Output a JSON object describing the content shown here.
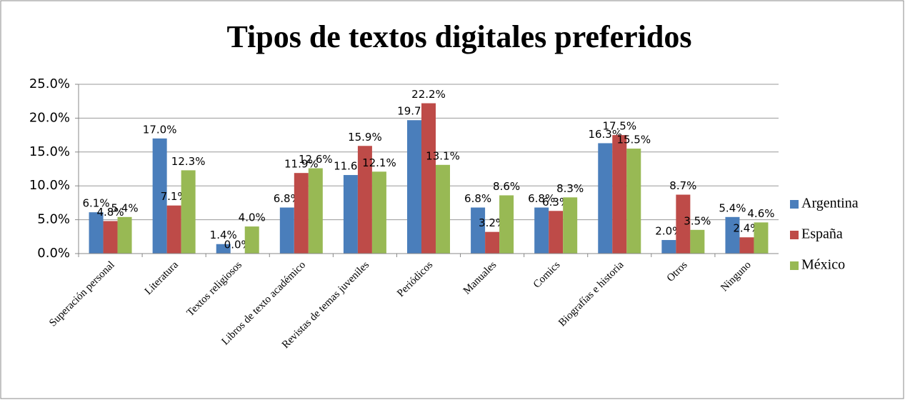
{
  "chart_data": {
    "type": "bar",
    "title": "Tipos de textos digitales preferidos",
    "categories": [
      "Superación personal",
      "Literatura",
      "Textos religiosos",
      "Libros de texto académico",
      "Revistas de temas juveniles",
      "Periódicos",
      "Manuales",
      "Comics",
      "Biografías e historia",
      "Otros",
      "Ninguno"
    ],
    "series": [
      {
        "name": "Argentina",
        "color": "#4a7ebb",
        "values": [
          6.1,
          17.0,
          1.4,
          6.8,
          11.6,
          19.7,
          6.8,
          6.8,
          16.3,
          2.0,
          5.4
        ],
        "value_labels": [
          "6.1%",
          "17.0%",
          "1.4%",
          "6.8%",
          "11.6%",
          "19.7%",
          "6.8%",
          "6.8%",
          "16.3%",
          "2.0%",
          "5.4%"
        ]
      },
      {
        "name": "España",
        "color": "#be4b48",
        "values": [
          4.8,
          7.1,
          0.0,
          11.9,
          15.9,
          22.2,
          3.2,
          6.3,
          17.5,
          8.7,
          2.4
        ],
        "value_labels": [
          "4.8%",
          "7.1%",
          "0.0%",
          "11.9%",
          "15.9%",
          "22.2%",
          "3.2%",
          "6.3%",
          "17.5%",
          "8.7%",
          "2.4%"
        ]
      },
      {
        "name": "México",
        "color": "#98b954",
        "values": [
          5.4,
          12.3,
          4.0,
          12.6,
          12.1,
          13.1,
          8.6,
          8.3,
          15.5,
          3.5,
          4.6
        ],
        "value_labels": [
          "5.4%",
          "12.3%",
          "4.0%",
          "12.6%",
          "12.1%",
          "13.1%",
          "8.6%",
          "8.3%",
          "15.5%",
          "3.5%",
          "4.6%"
        ]
      }
    ],
    "ylim": [
      0,
      25
    ],
    "yticks": [
      {
        "value": 0,
        "label": "0.0%"
      },
      {
        "value": 5,
        "label": "5.0%"
      },
      {
        "value": 10,
        "label": "10.0%"
      },
      {
        "value": 15,
        "label": "15.0%"
      },
      {
        "value": 20,
        "label": "20.0%"
      },
      {
        "value": 25,
        "label": "25.0%"
      }
    ],
    "grid": true,
    "legend": "right"
  }
}
